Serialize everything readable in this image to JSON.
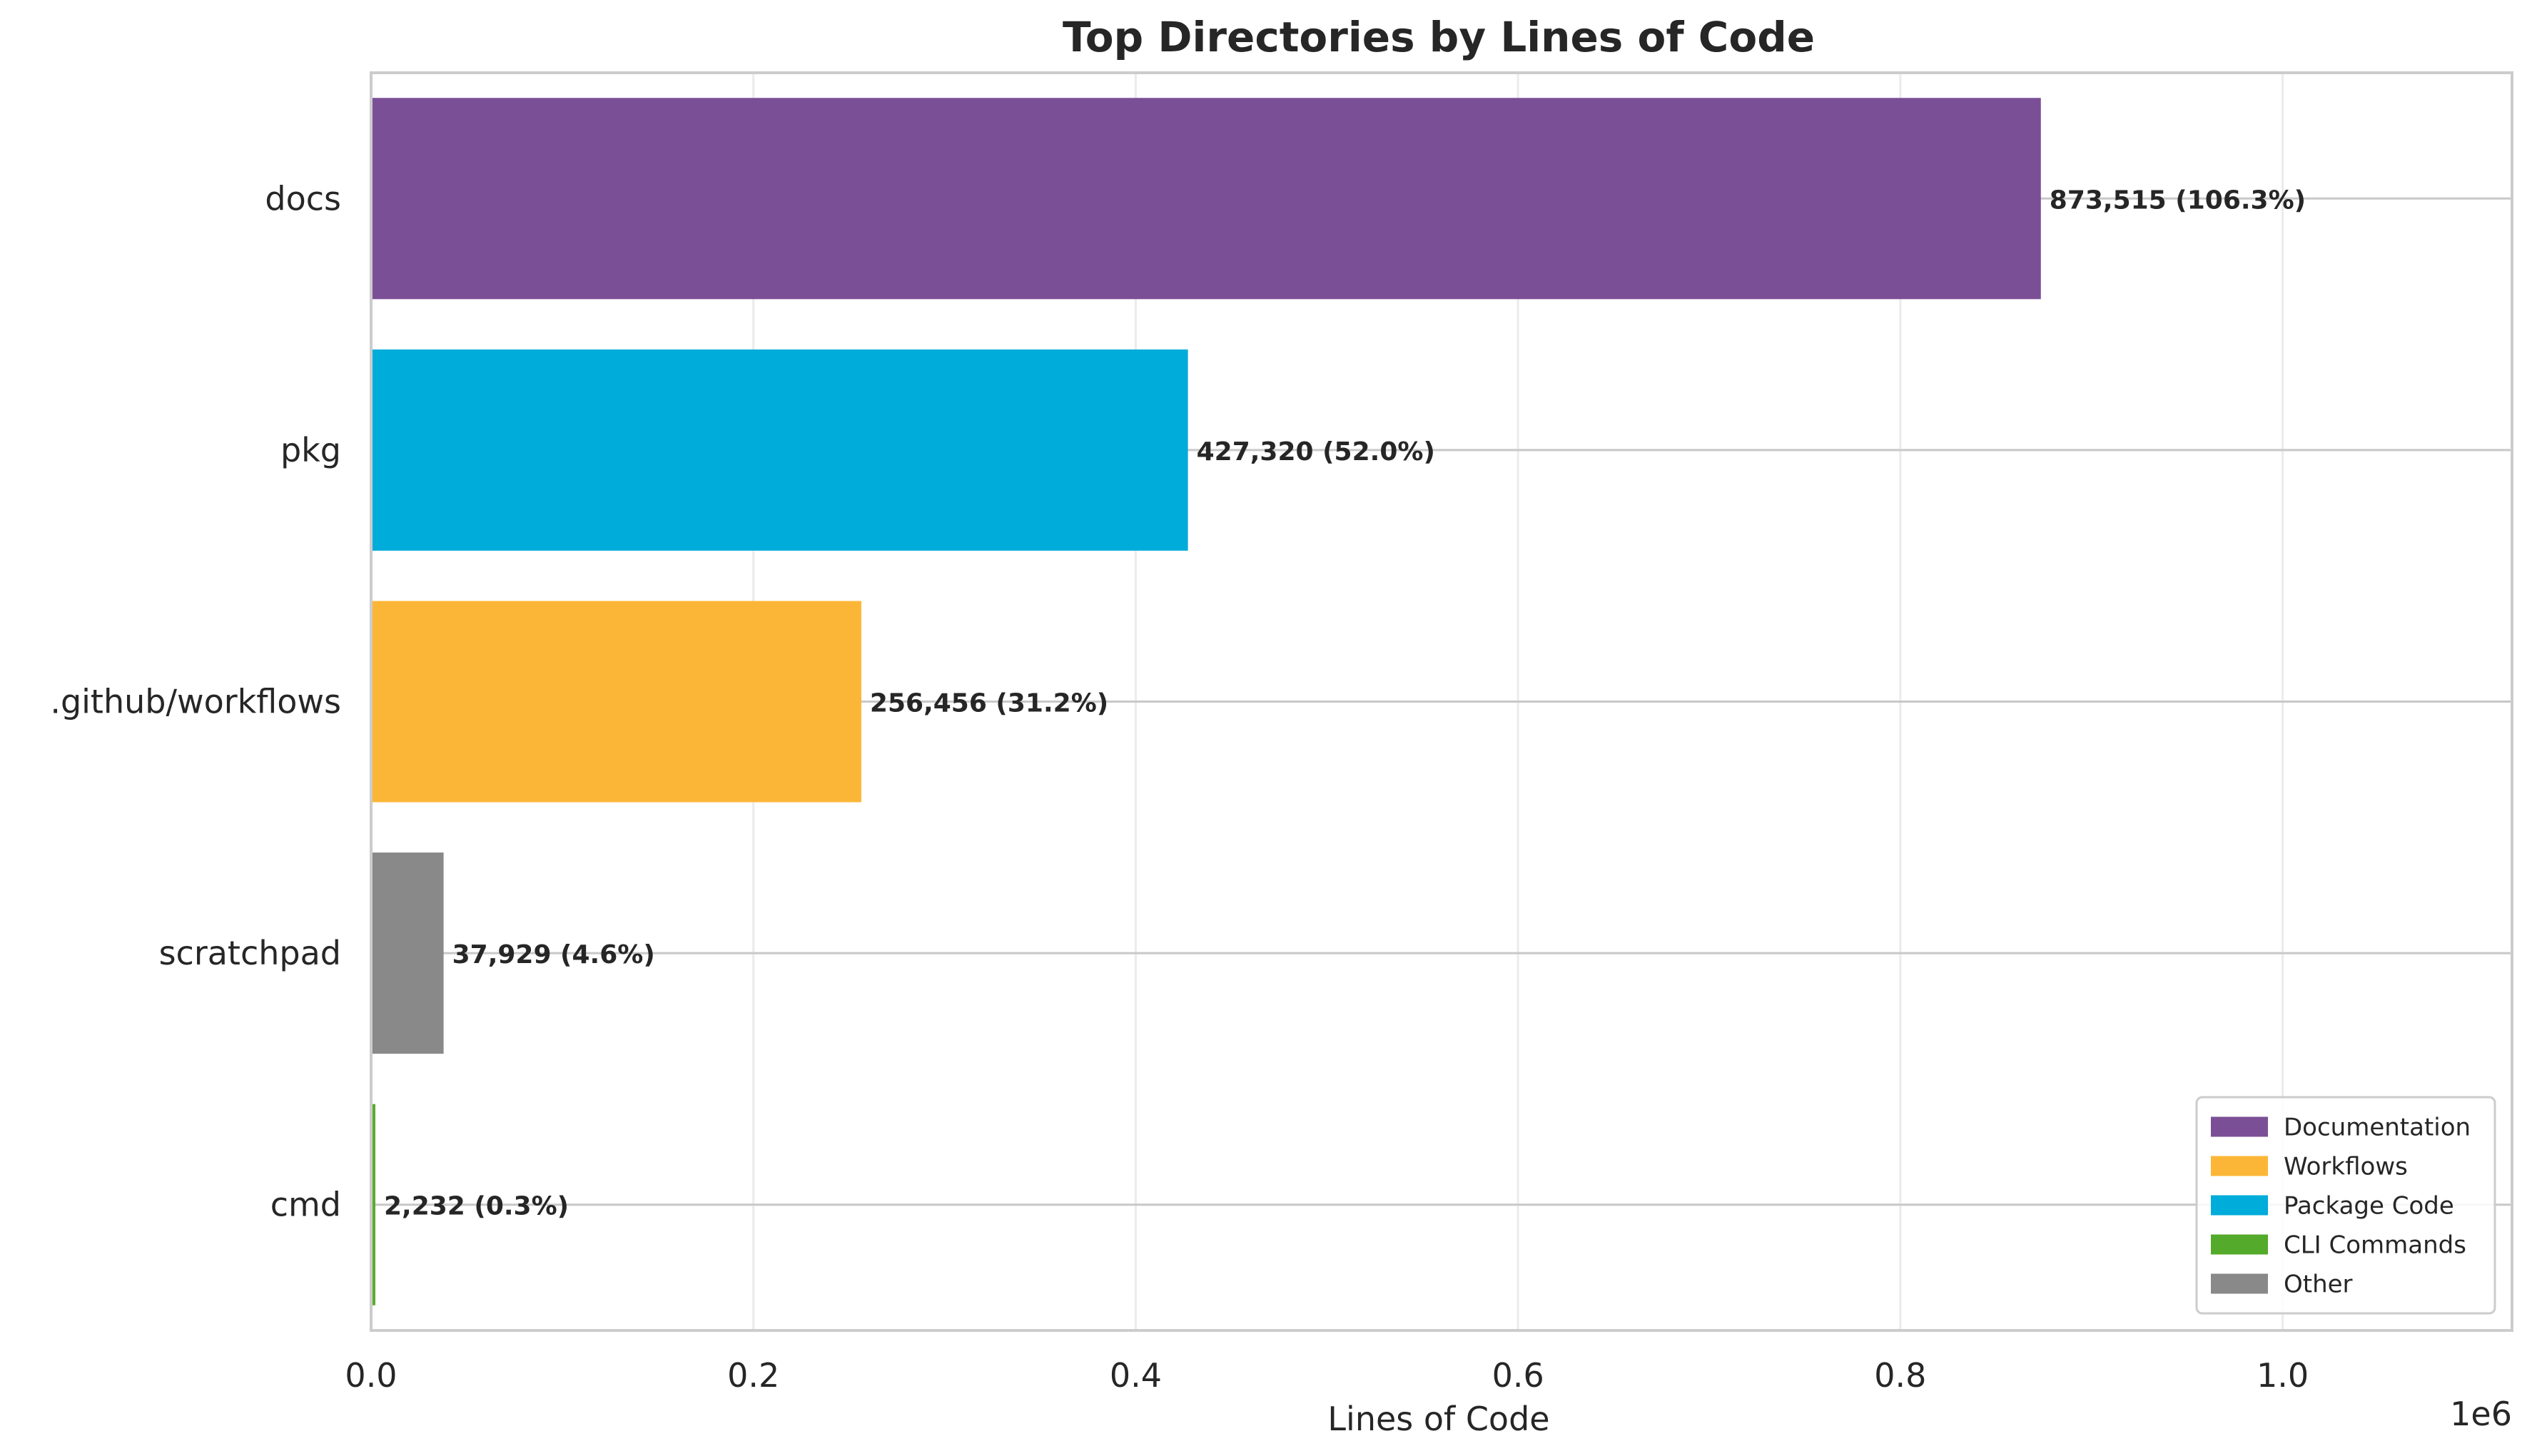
{
  "chart_data": {
    "type": "bar",
    "orientation": "horizontal",
    "title": "Top Directories by Lines of Code",
    "xlabel": "Lines of Code",
    "ylabel": "",
    "x_scale_label": "1e6",
    "xlim": [
      0,
      1120000
    ],
    "x_ticks": [
      {
        "value": 0,
        "label": "0.0"
      },
      {
        "value": 200000,
        "label": "0.2"
      },
      {
        "value": 400000,
        "label": "0.4"
      },
      {
        "value": 600000,
        "label": "0.6"
      },
      {
        "value": 800000,
        "label": "0.8"
      },
      {
        "value": 1000000,
        "label": "1.0"
      }
    ],
    "grid": true,
    "legend_position": "bottom-right",
    "bars": [
      {
        "label": "docs",
        "value": 873515,
        "data_label": "873,515 (106.3%)",
        "category": "Documentation",
        "color": "#7b4f96"
      },
      {
        "label": "pkg",
        "value": 427320,
        "data_label": "427,320 (52.0%)",
        "category": "Package Code",
        "color": "#00acd9"
      },
      {
        "label": ".github/workflows",
        "value": 256456,
        "data_label": "256,456 (31.2%)",
        "category": "Workflows",
        "color": "#fcb637"
      },
      {
        "label": "scratchpad",
        "value": 37929,
        "data_label": "37,929 (4.6%)",
        "category": "Other",
        "color": "#898989"
      },
      {
        "label": "cmd",
        "value": 2232,
        "data_label": "2,232 (0.3%)",
        "category": "CLI Commands",
        "color": "#5aab2e"
      }
    ],
    "legend": [
      {
        "label": "Documentation",
        "color": "#7b4f96"
      },
      {
        "label": "Workflows",
        "color": "#fcb637"
      },
      {
        "label": "Package Code",
        "color": "#00acd9"
      },
      {
        "label": "CLI Commands",
        "color": "#53aa2b"
      },
      {
        "label": "Other",
        "color": "#898989"
      }
    ]
  }
}
